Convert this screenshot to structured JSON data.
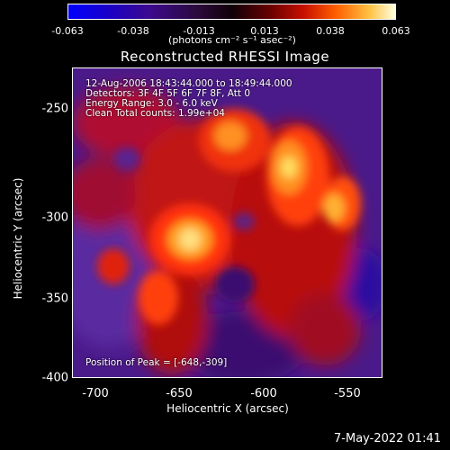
{
  "colorbar": {
    "ticks": [
      "-0.063",
      "-0.038",
      "-0.013",
      "0.013",
      "0.038",
      "0.063"
    ],
    "units": "(photons cm⁻² s⁻¹ asec⁻²)"
  },
  "title": "Reconstructed RHESSI Image",
  "info": {
    "line1": "12-Aug-2006 18:43:44.000 to 18:49:44.000",
    "line2": "Detectors: 3F 4F 5F 6F 7F 8F, Att 0",
    "line3": "Energy Range: 3.0 - 6.0 keV",
    "line4": "Clean    Total counts: 1.99e+04",
    "peak": "Position of Peak = [-648,-309]"
  },
  "axes": {
    "xlabel": "Heliocentric X (arcsec)",
    "ylabel": "Heliocentric Y (arcsec)",
    "xticks": [
      "-700",
      "-650",
      "-600",
      "-550"
    ],
    "yticks": [
      "-250",
      "-300",
      "-350",
      "-400"
    ]
  },
  "timestamp": "7-May-2022 01:41"
}
